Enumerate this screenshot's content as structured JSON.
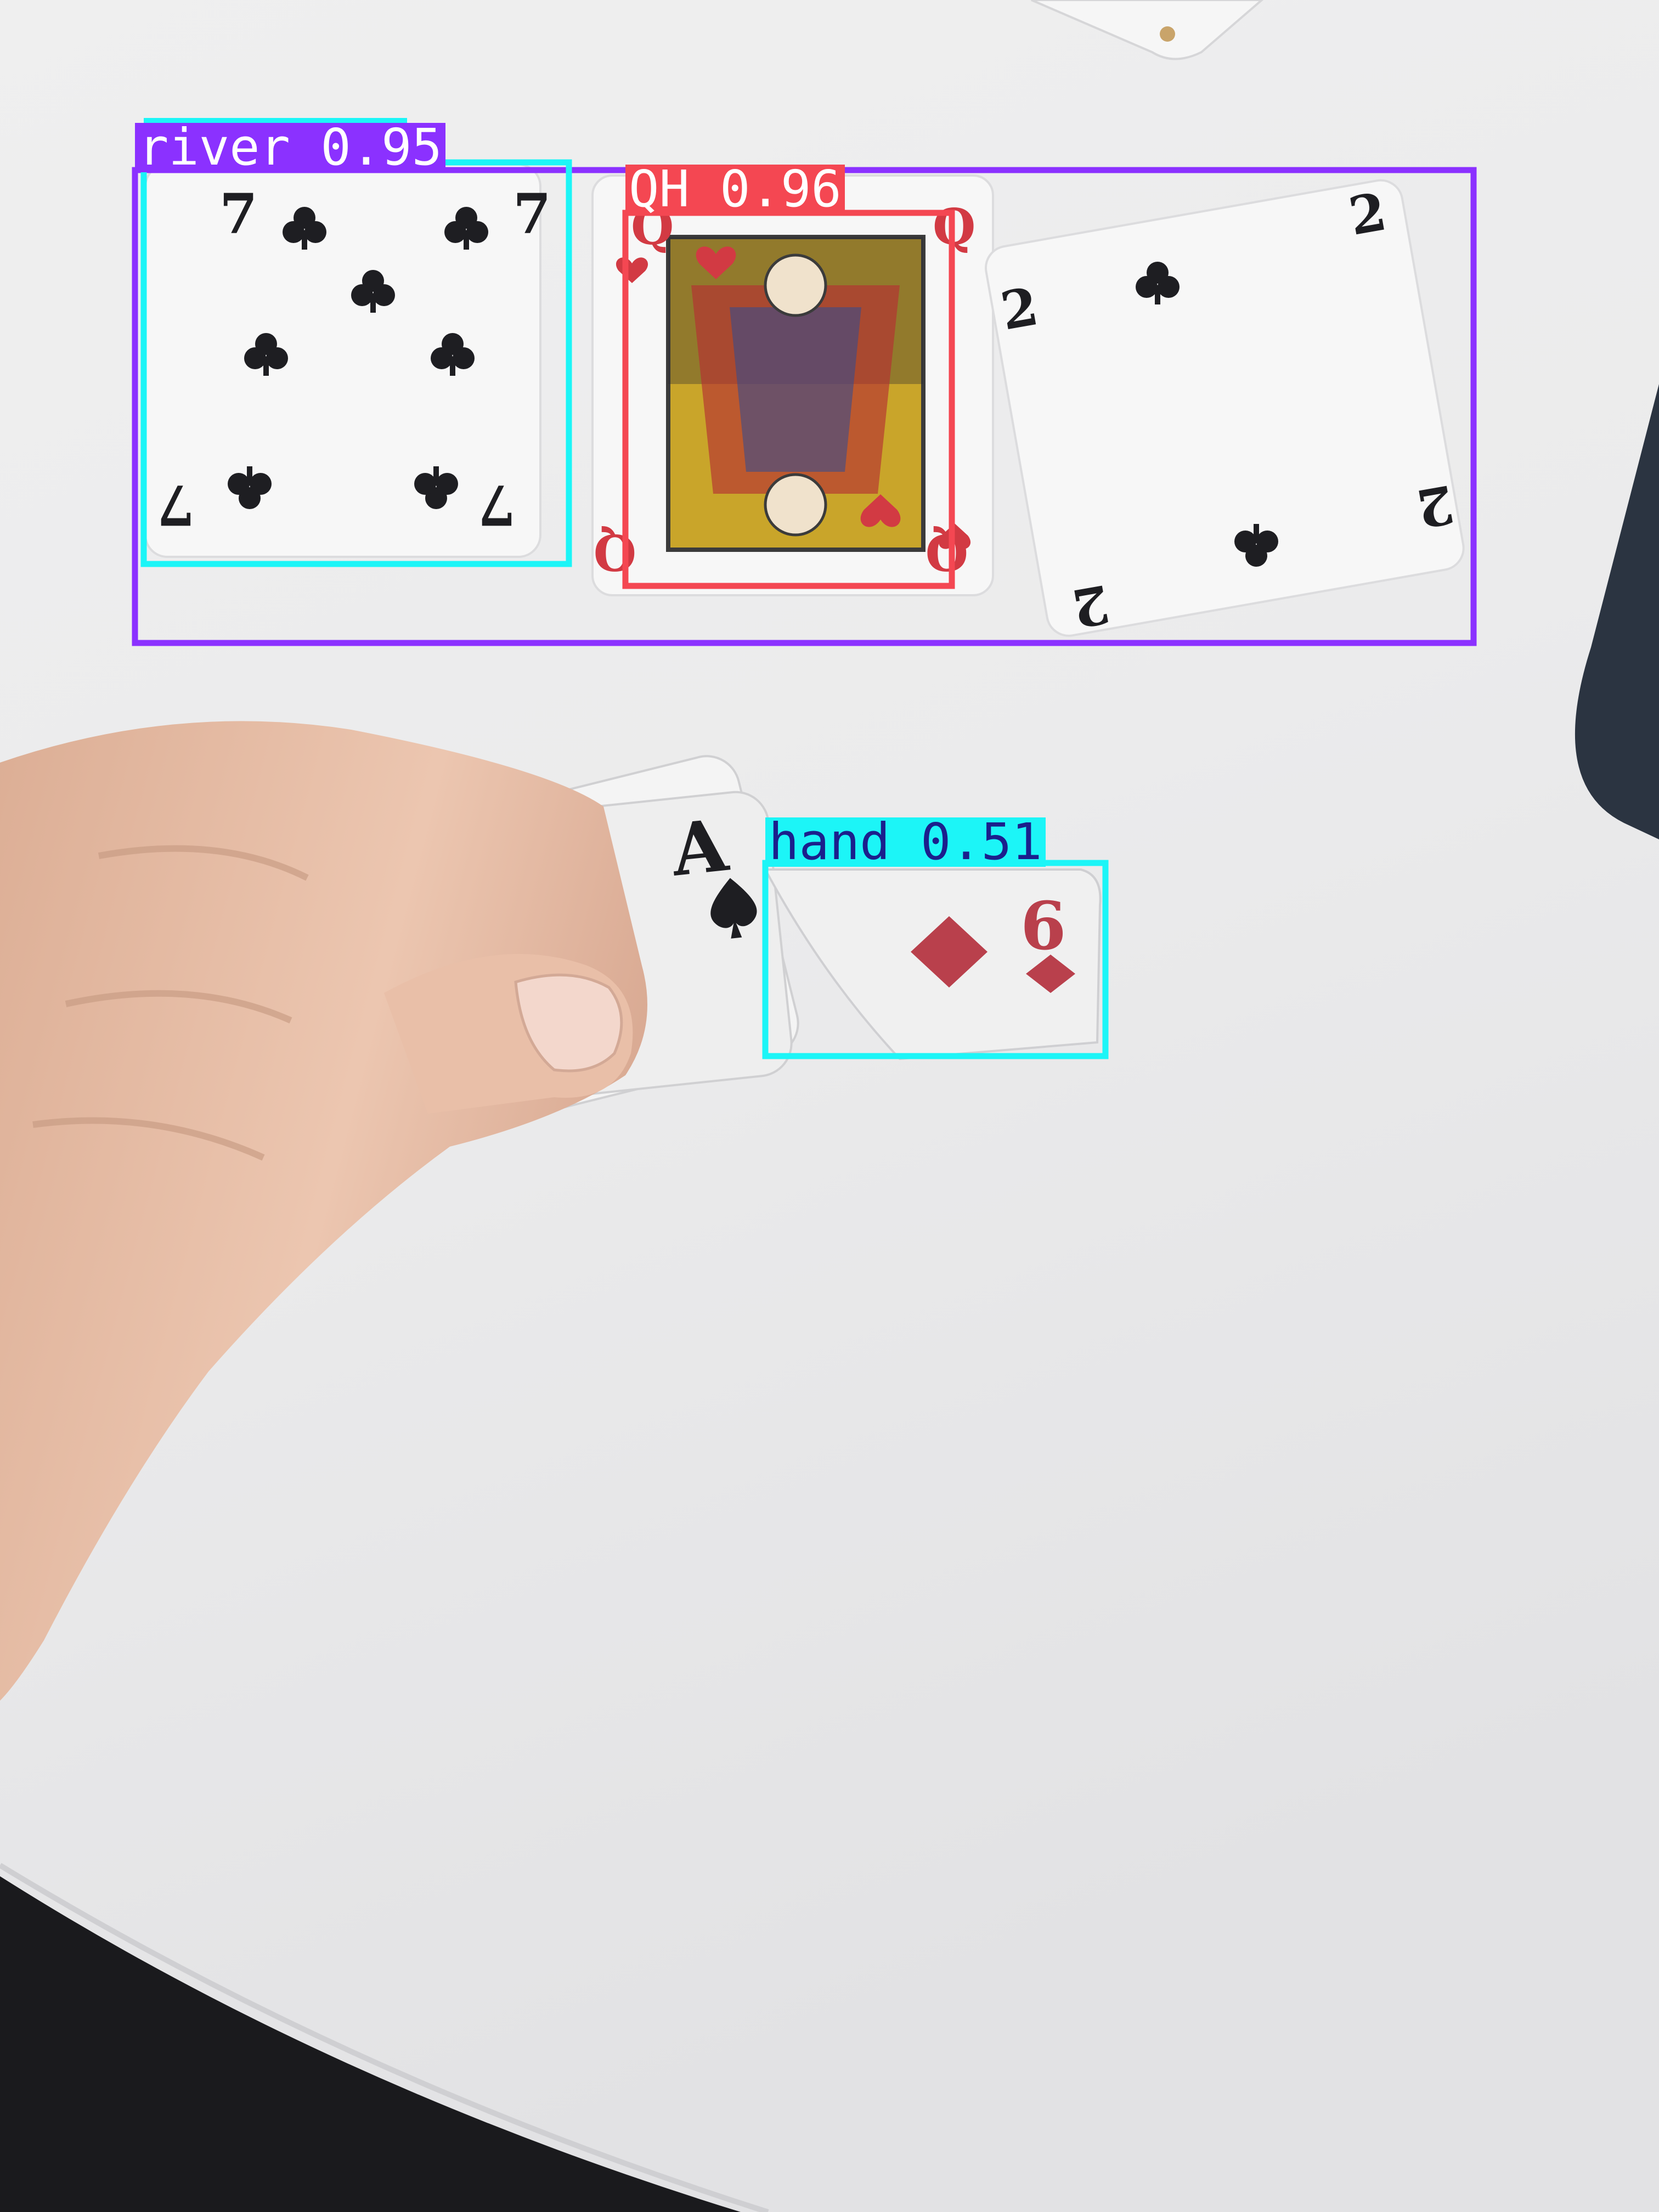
{
  "image": {
    "description_colors": {
      "table": "#ececec",
      "table_shadow": "#d9d9db",
      "skin": "#e8c2aa",
      "skin_shadow": "#c99c84",
      "card": "#f7f7f7",
      "clubs": "#1e1e22",
      "hearts": "#d23a43",
      "diamonds": "#b9404c",
      "device": "#2b3441",
      "floor": "#1a1a1d"
    }
  },
  "cards": {
    "seven_clubs": {
      "rank": "7",
      "suit": "clubs"
    },
    "queen_hearts": {
      "rank": "Q",
      "suit": "hearts"
    },
    "two_clubs": {
      "rank": "2",
      "suit": "clubs"
    },
    "ace_spades_back": {
      "rank": "A",
      "suit": "spades"
    },
    "ace_spades_front": {
      "rank": "A",
      "suit": "spades"
    },
    "six_diamonds": {
      "rank": "6",
      "suit": "diamonds"
    }
  },
  "detections": [
    {
      "id": "river",
      "label": "river 0.95",
      "class": "river",
      "confidence": 0.95,
      "color": "#8b31ff",
      "text_color": "#ffffff"
    },
    {
      "id": "qh",
      "label": "QH 0.96",
      "class": "QH",
      "confidence": 0.96,
      "color": "#f44752",
      "text_color": "#ffffff"
    },
    {
      "id": "seven",
      "label": "",
      "class": "",
      "color": "#1cf5f7"
    },
    {
      "id": "hand",
      "label": "hand 0.51",
      "class": "hand",
      "confidence": 0.51,
      "color": "#1cf5f7",
      "text_color": "#1b1f8c"
    }
  ]
}
